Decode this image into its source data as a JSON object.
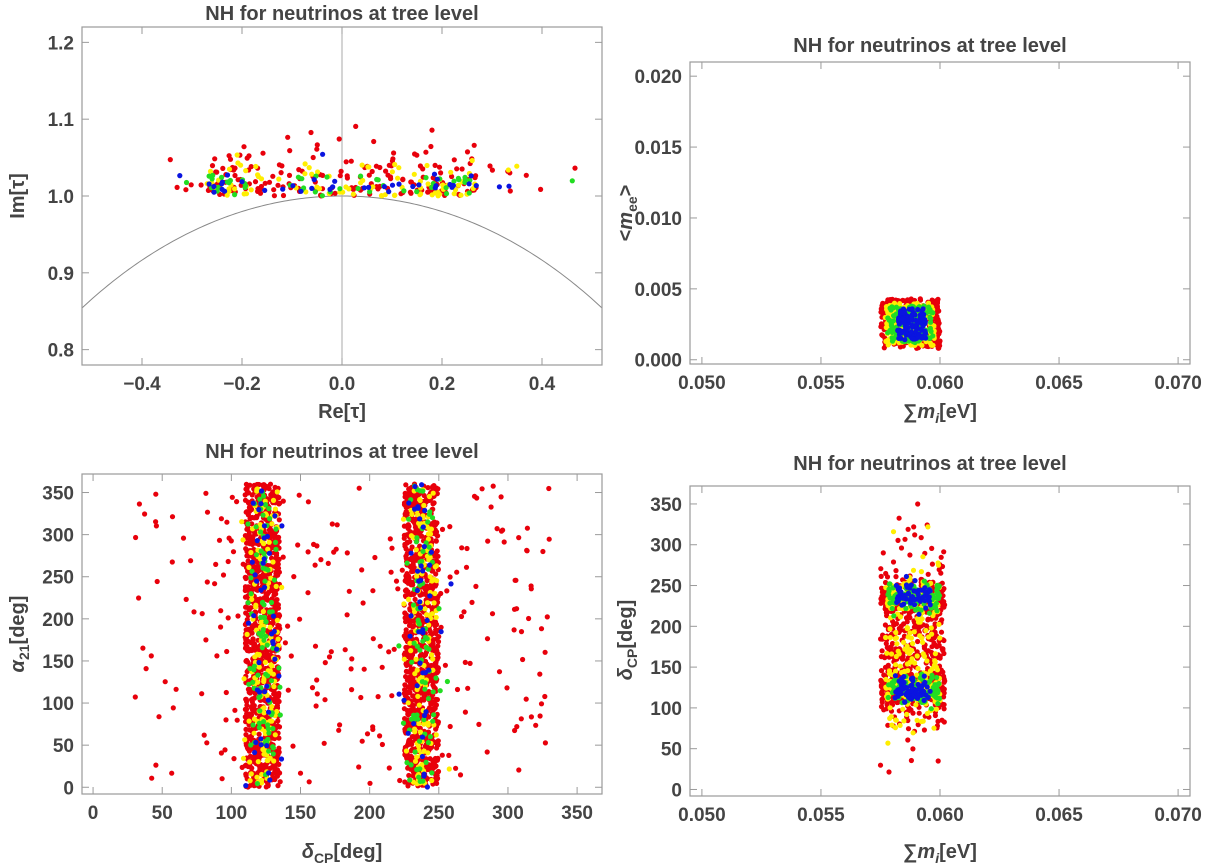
{
  "colors": {
    "red": "#e8000b",
    "yellow": "#ffee00",
    "green": "#22dd22",
    "blue": "#0a14e0",
    "axis": "#444444"
  },
  "chart_data": [
    {
      "type": "scatter",
      "title": "NH for neutrinos at tree level",
      "xlabel": "Re[τ]",
      "ylabel": "Im[τ]",
      "xlim": [
        -0.52,
        0.52
      ],
      "ylim": [
        0.78,
        1.22
      ],
      "xticks": [
        "−0.4",
        "−0.2",
        "0.0",
        "0.2",
        "0.4"
      ],
      "xtick_values": [
        -0.4,
        -0.2,
        0.0,
        0.2,
        0.4
      ],
      "yticks": [
        "0.8",
        "0.9",
        "1.0",
        "1.1",
        "1.2"
      ],
      "ytick_values": [
        0.8,
        0.9,
        1.0,
        1.1,
        1.2
      ],
      "reference_curves": [
        "|τ| = 1 arc",
        "Re[τ] = 0 line"
      ],
      "clusters": [
        {
          "color": "red",
          "count": 200,
          "x_range": [
            -0.27,
            0.28
          ],
          "y_range": [
            1.0,
            1.09
          ]
        },
        {
          "color": "yellow",
          "count": 90,
          "x_range": [
            -0.26,
            0.27
          ],
          "y_range": [
            1.0,
            1.06
          ]
        },
        {
          "color": "green",
          "count": 50,
          "x_range": [
            -0.26,
            0.27
          ],
          "y_range": [
            1.0,
            1.05
          ]
        },
        {
          "color": "blue",
          "count": 40,
          "x_range": [
            -0.25,
            0.25
          ],
          "y_range": [
            1.005,
            1.04
          ]
        }
      ]
    },
    {
      "type": "scatter",
      "title": "NH for neutrinos at tree level",
      "xlabel": "∑m_i[eV]",
      "ylabel": "<m_ee>",
      "xlim": [
        0.0495,
        0.0705
      ],
      "ylim": [
        -0.0003,
        0.021
      ],
      "xticks": [
        "0.050",
        "0.055",
        "0.060",
        "0.065",
        "0.070"
      ],
      "xtick_values": [
        0.05,
        0.055,
        0.06,
        0.065,
        0.07
      ],
      "yticks": [
        "0.000",
        "0.005",
        "0.010",
        "0.015",
        "0.020"
      ],
      "ytick_values": [
        0,
        0.005,
        0.01,
        0.015,
        0.02
      ],
      "clusters": [
        {
          "color": "red",
          "count": 320,
          "x_range": [
            0.0575,
            0.06
          ],
          "y_range": [
            0.0008,
            0.0043
          ]
        },
        {
          "color": "yellow",
          "count": 180,
          "x_range": [
            0.0577,
            0.0598
          ],
          "y_range": [
            0.001,
            0.004
          ]
        },
        {
          "color": "green",
          "count": 140,
          "x_range": [
            0.0578,
            0.0597
          ],
          "y_range": [
            0.0012,
            0.0038
          ]
        },
        {
          "color": "blue",
          "count": 110,
          "x_range": [
            0.0582,
            0.0594
          ],
          "y_range": [
            0.0014,
            0.0036
          ]
        }
      ]
    },
    {
      "type": "scatter",
      "title": "NH for neutrinos at tree level",
      "xlabel": "δ_CP[deg]",
      "ylabel": "α_21[deg]",
      "xlim": [
        -8,
        368
      ],
      "ylim": [
        -8,
        372
      ],
      "xticks": [
        "0",
        "50",
        "100",
        "150",
        "200",
        "250",
        "300",
        "350"
      ],
      "xtick_values": [
        0,
        50,
        100,
        150,
        200,
        250,
        300,
        350
      ],
      "yticks": [
        "0",
        "50",
        "100",
        "150",
        "200",
        "250",
        "300",
        "350"
      ],
      "ytick_values": [
        0,
        50,
        100,
        150,
        200,
        250,
        300,
        350
      ],
      "clusters": [
        {
          "color": "red",
          "count": 900,
          "x_range": [
            110,
            135
          ],
          "y_range": [
            0,
            360
          ]
        },
        {
          "color": "red",
          "count": 900,
          "x_range": [
            225,
            250
          ],
          "y_range": [
            0,
            360
          ]
        },
        {
          "color": "red",
          "count": 260,
          "x_range": [
            30,
            330
          ],
          "y_range": [
            0,
            360
          ]
        },
        {
          "color": "yellow",
          "count": 300,
          "x_range": [
            110,
            250
          ],
          "y_range": [
            0,
            360
          ]
        },
        {
          "color": "green",
          "count": 180,
          "x_range": [
            115,
            245
          ],
          "y_range": [
            0,
            360
          ]
        },
        {
          "color": "blue",
          "count": 90,
          "x_range": [
            117,
            243
          ],
          "y_range": [
            0,
            360
          ]
        }
      ]
    },
    {
      "type": "scatter",
      "title": "NH for neutrinos at tree level",
      "xlabel": "∑m_i[eV]",
      "ylabel": "δ_CP[deg]",
      "xlim": [
        0.0495,
        0.0705
      ],
      "ylim": [
        -8,
        372
      ],
      "xticks": [
        "0.050",
        "0.055",
        "0.060",
        "0.065",
        "0.070"
      ],
      "xtick_values": [
        0.05,
        0.055,
        0.06,
        0.065,
        0.07
      ],
      "yticks": [
        "0",
        "50",
        "100",
        "150",
        "200",
        "250",
        "300",
        "350"
      ],
      "ytick_values": [
        0,
        50,
        100,
        150,
        200,
        250,
        300,
        350
      ],
      "clusters": [
        {
          "color": "red",
          "count": 700,
          "x_range": [
            0.0575,
            0.0602
          ],
          "y_range": [
            30,
            320
          ]
        },
        {
          "color": "yellow",
          "count": 280,
          "x_range": [
            0.0577,
            0.06
          ],
          "y_range": [
            40,
            300
          ]
        },
        {
          "color": "green",
          "count": 200,
          "x_range": [
            0.0578,
            0.06
          ],
          "y_range": [
            100,
            260
          ]
        },
        {
          "color": "blue",
          "count": 130,
          "x_range": [
            0.0581,
            0.0596
          ],
          "y_range": [
            110,
            245
          ]
        }
      ]
    }
  ]
}
